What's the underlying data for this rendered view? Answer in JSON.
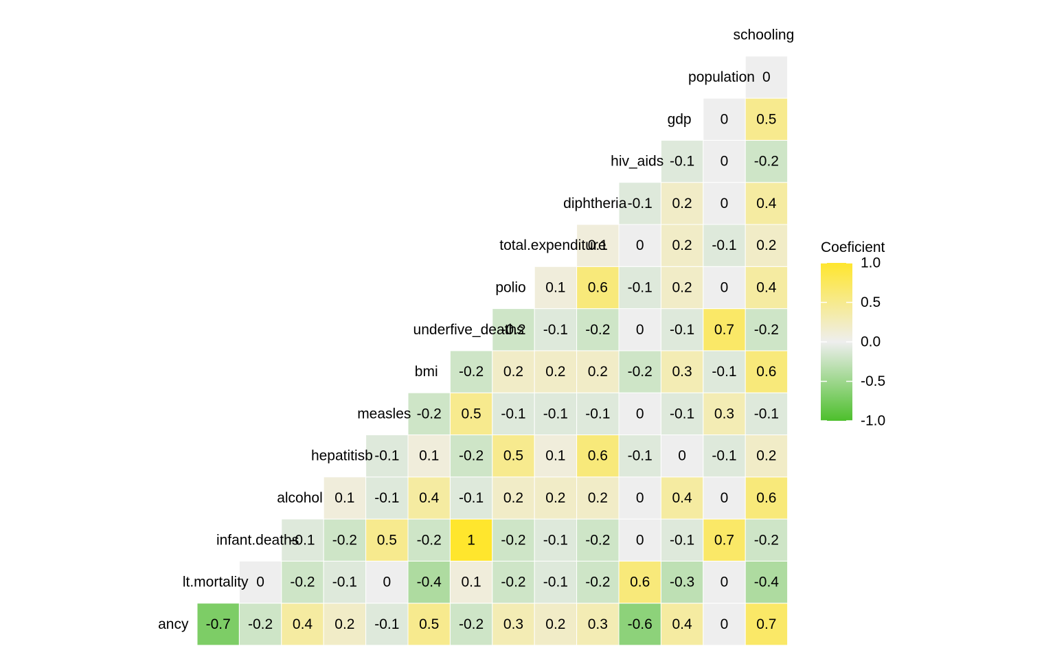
{
  "chart_data": {
    "type": "heatmap",
    "title": "",
    "xlabel": "",
    "ylabel": "",
    "variables": [
      "life.expectancy",
      "adult.mortality",
      "infant.deaths",
      "alcohol",
      "hepatitisb",
      "measles",
      "bmi",
      "underfive_deaths",
      "polio",
      "total.expenditure",
      "diphtheria",
      "hiv_aids",
      "gdp",
      "population",
      "schooling"
    ],
    "row_labels": [
      "ancy",
      "lt.mortality",
      "infant.deaths",
      "alcohol",
      "hepatitisb",
      "measles",
      "bmi",
      "underfive_deaths",
      "polio",
      "total.expenditure",
      "diphtheria",
      "hiv_aids",
      "gdp",
      "population",
      "schooling"
    ],
    "values": [
      [
        -0.7,
        -0.2,
        0.4,
        0.2,
        -0.1,
        0.5,
        -0.2,
        0.3,
        0.2,
        0.3,
        -0.6,
        0.4,
        0,
        0.7
      ],
      [
        0,
        -0.2,
        -0.1,
        0,
        -0.4,
        0.1,
        -0.2,
        -0.1,
        -0.2,
        0.6,
        -0.3,
        0,
        -0.4
      ],
      [
        -0.1,
        -0.2,
        0.5,
        -0.2,
        1,
        -0.2,
        -0.1,
        -0.2,
        0,
        -0.1,
        0.7,
        -0.2
      ],
      [
        0.1,
        -0.1,
        0.4,
        -0.1,
        0.2,
        0.2,
        0.2,
        0,
        0.4,
        0,
        0.6
      ],
      [
        -0.1,
        0.1,
        -0.2,
        0.5,
        0.1,
        0.6,
        -0.1,
        0,
        -0.1,
        0.2
      ],
      [
        -0.2,
        0.5,
        -0.1,
        -0.1,
        -0.1,
        0,
        -0.1,
        0.3,
        -0.1
      ],
      [
        -0.2,
        0.2,
        0.2,
        0.2,
        -0.2,
        0.3,
        -0.1,
        0.6
      ],
      [
        -0.2,
        -0.1,
        -0.2,
        0,
        -0.1,
        0.7,
        -0.2
      ],
      [
        0.1,
        0.6,
        -0.1,
        0.2,
        0,
        0.4
      ],
      [
        0.1,
        0,
        0.2,
        -0.1,
        0.2
      ],
      [
        -0.1,
        0.2,
        0,
        0.4
      ],
      [
        -0.1,
        0,
        -0.2
      ],
      [
        0,
        0.5
      ],
      [
        0
      ]
    ],
    "color_scale": {
      "low": "#4dbf2c",
      "mid": "#eeeeee",
      "high": "#ffe62d",
      "limits": [
        -1,
        1
      ]
    },
    "legend": {
      "title": "Coeficient",
      "placement": "right",
      "ticks": [
        "1.0",
        "0.5",
        "0.0",
        "-0.5",
        "-1.0"
      ],
      "tick_values": [
        1,
        0.5,
        0,
        -0.5,
        -1
      ]
    }
  }
}
